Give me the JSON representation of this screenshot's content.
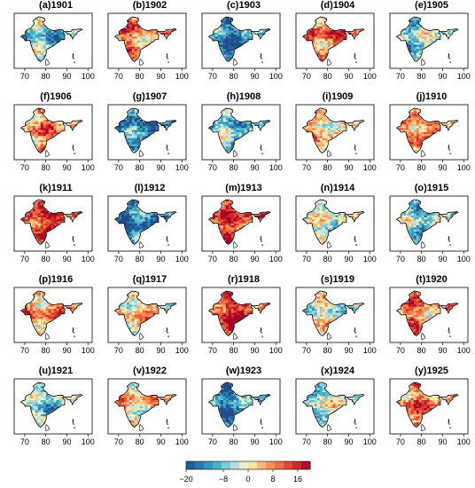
{
  "panels": [
    {
      "label": "(a)1901",
      "anomaly": -8
    },
    {
      "label": "(b)1902",
      "anomaly": 8
    },
    {
      "label": "(c)1903",
      "anomaly": -14
    },
    {
      "label": "(d)1904",
      "anomaly": 10
    },
    {
      "label": "(e)1905",
      "anomaly": -6
    },
    {
      "label": "(f)1906",
      "anomaly": 6
    },
    {
      "label": "(g)1907",
      "anomaly": -16
    },
    {
      "label": "(h)1908",
      "anomaly": -8
    },
    {
      "label": "(i)1909",
      "anomaly": 4
    },
    {
      "label": "(j)1910",
      "anomaly": 10
    },
    {
      "label": "(k)1911",
      "anomaly": 16
    },
    {
      "label": "(l)1912",
      "anomaly": -16
    },
    {
      "label": "(m)1913",
      "anomaly": 12
    },
    {
      "label": "(n)1914",
      "anomaly": -4
    },
    {
      "label": "(o)1915",
      "anomaly": -8
    },
    {
      "label": "(p)1916",
      "anomaly": 8
    },
    {
      "label": "(q)1917",
      "anomaly": 4
    },
    {
      "label": "(r)1918",
      "anomaly": 16
    },
    {
      "label": "(s)1919",
      "anomaly": -2
    },
    {
      "label": "(t)1920",
      "anomaly": 8
    },
    {
      "label": "(u)1921",
      "anomaly": -6
    },
    {
      "label": "(v)1922",
      "anomaly": 4
    },
    {
      "label": "(w)1923",
      "anomaly": -14
    },
    {
      "label": "(x)1924",
      "anomaly": -4
    },
    {
      "label": "(y)1925",
      "anomaly": 8
    }
  ],
  "x_axis": {
    "ticks": [
      "70",
      "80",
      "90",
      "100"
    ],
    "range": [
      65,
      102
    ]
  },
  "colorbar": {
    "ticks": [
      "−20",
      "−8",
      "0",
      "8",
      "16"
    ],
    "range": [
      -20,
      20
    ],
    "colors": [
      "#1f4e8c",
      "#2c7fb8",
      "#41b6c4",
      "#a6dbe7",
      "#fff7bc",
      "#fdae61",
      "#f46d43",
      "#d73027",
      "#a50026"
    ]
  }
}
